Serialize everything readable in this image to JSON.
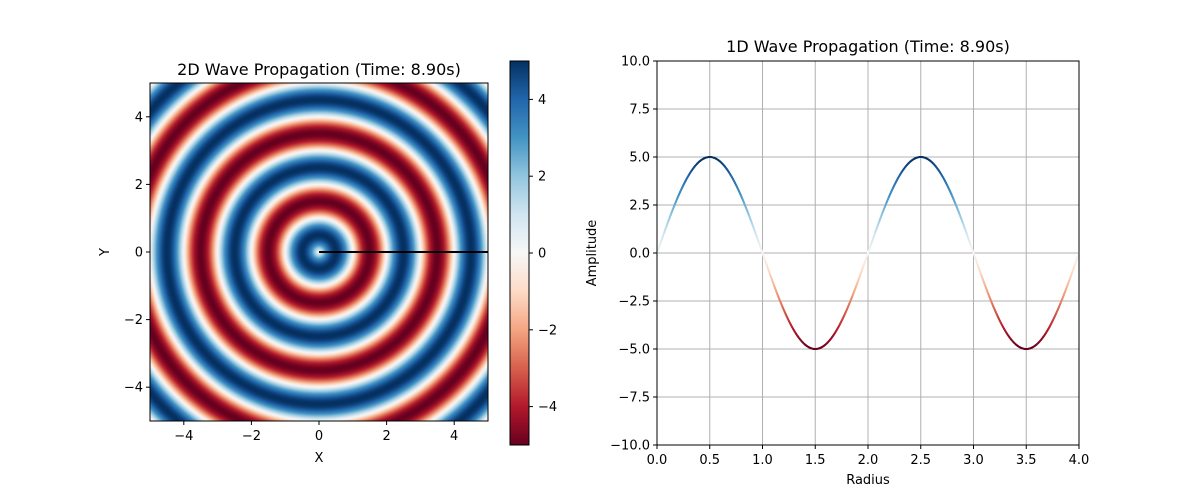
{
  "chart_data": [
    {
      "type": "heatmap",
      "title": "2D Wave Propagation (Time: 8.90s)",
      "xlabel": "X",
      "ylabel": "Y",
      "xlim": [
        -5,
        5
      ],
      "ylim": [
        -5,
        5
      ],
      "xticks": [
        -4,
        -2,
        0,
        2,
        4
      ],
      "yticks": [
        -4,
        -2,
        0,
        2,
        4
      ],
      "xtick_labels": [
        "−4",
        "−2",
        "0",
        "2",
        "4"
      ],
      "ytick_labels": [
        "−4",
        "−2",
        "0",
        "2",
        "4"
      ],
      "colormap": "RdBu",
      "color_range": [
        -5,
        5
      ],
      "colorbar_ticks": [
        -4,
        -2,
        0,
        2,
        4
      ],
      "colorbar_tick_labels": [
        "−4",
        "−2",
        "0",
        "2",
        "4"
      ],
      "field": "amplitude 5, radial wavelength 2, positive peaks at r = 0.5 + 2k, negative troughs at r = 1.5 + 2k",
      "amplitude": 5,
      "wavelength": 2,
      "radial_line": {
        "x": [
          0,
          5
        ],
        "y": [
          0,
          0
        ],
        "color": "#000000"
      },
      "grid": false
    },
    {
      "type": "line",
      "title": "1D Wave Propagation (Time: 8.90s)",
      "xlabel": "Radius",
      "ylabel": "Amplitude",
      "xlim": [
        0,
        4
      ],
      "ylim": [
        -10,
        10
      ],
      "xticks": [
        0,
        0.5,
        1,
        1.5,
        2,
        2.5,
        3,
        3.5,
        4
      ],
      "yticks": [
        -10,
        -7.5,
        -5,
        -2.5,
        0,
        2.5,
        5,
        7.5,
        10
      ],
      "xtick_labels": [
        "0.0",
        "0.5",
        "1.0",
        "1.5",
        "2.0",
        "2.5",
        "3.0",
        "3.5",
        "4.0"
      ],
      "ytick_labels": [
        "−10.0",
        "−7.5",
        "−5.0",
        "−2.5",
        "0.0",
        "2.5",
        "5.0",
        "7.5",
        "10.0"
      ],
      "x": [
        0,
        0.25,
        0.5,
        0.75,
        1.0,
        1.25,
        1.5,
        1.75,
        2.0,
        2.25,
        2.5,
        2.75,
        3.0,
        3.25,
        3.5,
        3.75,
        4.0
      ],
      "y": [
        0,
        3.54,
        5,
        3.54,
        0,
        -3.54,
        -5,
        -3.54,
        0,
        3.54,
        5,
        3.54,
        0,
        -3.54,
        -5,
        -3.54,
        0
      ],
      "line_coloring": "colored by amplitude with RdBu colormap",
      "color_range": [
        -5,
        5
      ],
      "grid": true
    }
  ]
}
